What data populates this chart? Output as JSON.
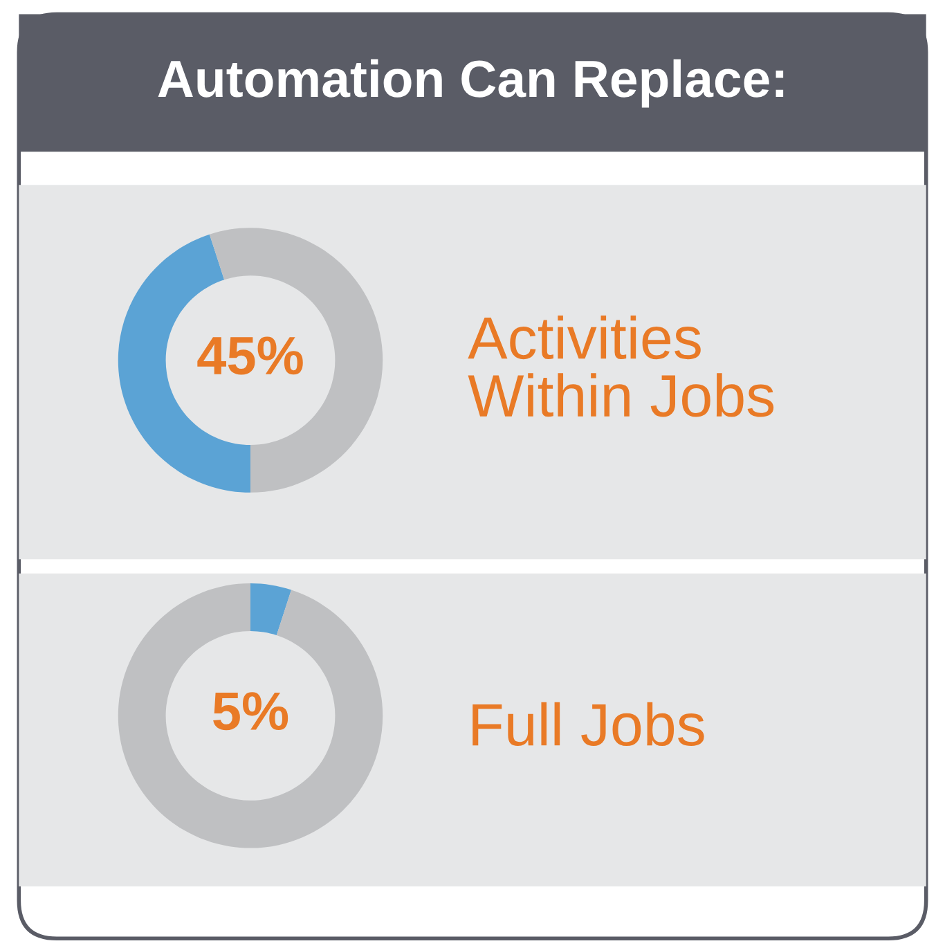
{
  "chart_data": [
    {
      "type": "donut",
      "title": "Automation Can Replace:",
      "subtitle": "Activities\nWithin Jobs",
      "categories": [
        null,
        null
      ],
      "values": [
        45,
        55
      ],
      "colors": [
        "#5ba3d5",
        "#bfc0c2"
      ],
      "value_labels": [
        "45%",
        null
      ]
    },
    {
      "type": "donut",
      "subtitle": "Full Jobs",
      "categories": [
        null,
        null
      ],
      "values": [
        5,
        95
      ],
      "colors": [
        "#5ba3d5",
        "#bfc0c2"
      ],
      "value_labels": [
        "5%",
        null
      ]
    }
  ]
}
